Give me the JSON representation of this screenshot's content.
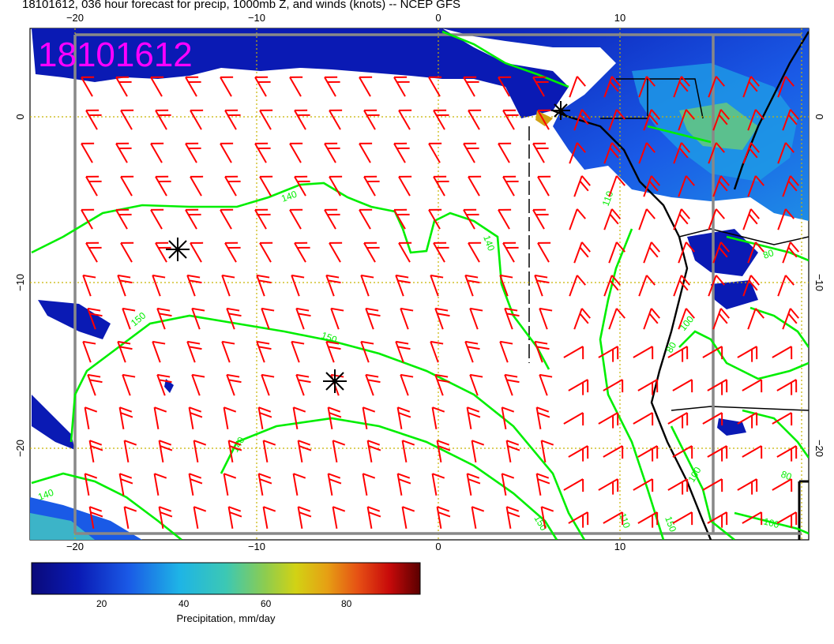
{
  "title": "18101612, 036 hour forecast for precip, 1000mb Z, and winds (knots) -- NCEP GFS",
  "date_overlay": "18101612",
  "axes": {
    "x_top_ticks": [
      "−20",
      "−10",
      "0",
      "10"
    ],
    "x_bottom_ticks": [
      "−20",
      "−10",
      "0",
      "10"
    ],
    "y_left_ticks": [
      "0",
      "−10",
      "−20"
    ],
    "y_right_ticks": [
      "0",
      "−10",
      "−20"
    ]
  },
  "contour_labels": [
    "140",
    "140",
    "140",
    "110",
    "140",
    "150",
    "150",
    "150",
    "150",
    "110",
    "100",
    "80",
    "100",
    "80",
    "100",
    "80"
  ],
  "colorbar": {
    "title": "Precipitation, mm/day",
    "ticks": [
      "20",
      "40",
      "60",
      "80"
    ]
  },
  "colors": {
    "wind_barbs": "#ff0000",
    "contours": "#00ee00",
    "overlay_text": "#ff00ff",
    "grid": "#c8b400",
    "coast": "#000000"
  }
}
